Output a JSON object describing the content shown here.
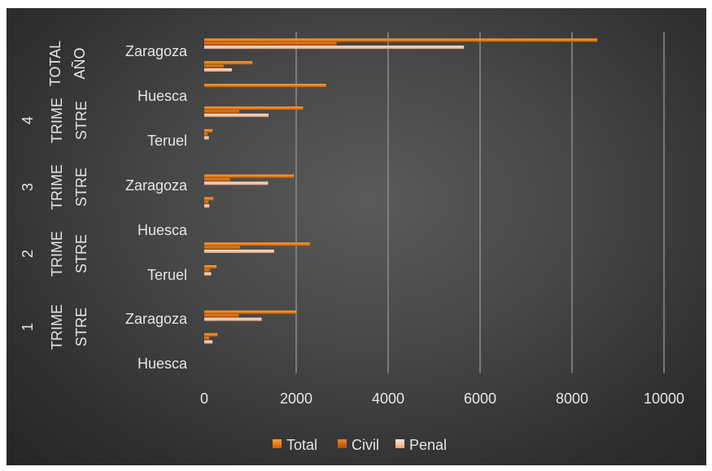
{
  "chart_data": {
    "type": "bar",
    "orientation": "horizontal",
    "title": "",
    "xlabel": "",
    "ylabel": "",
    "xlim": [
      0,
      10000
    ],
    "x_ticks": [
      "0",
      "2000",
      "4000",
      "6000",
      "8000",
      "10000"
    ],
    "grid": "vertical",
    "legend_position": "bottom",
    "category_labels": [
      "Huesca",
      "Zaragoza",
      "Teruel",
      "Huesca",
      "Zaragoza",
      "Teruel",
      "Huesca",
      "Zaragoza"
    ],
    "group_labels": [
      [
        "1",
        "TRIME",
        "STRE"
      ],
      [
        "2",
        "TRIME",
        "STRE"
      ],
      [
        "3",
        "TRIME",
        "STRE"
      ],
      [
        "4",
        "TRIME",
        "STRE"
      ],
      [
        "TOTAL",
        "AÑO"
      ]
    ],
    "rows": [
      {
        "group": "1 TRIMESTRE",
        "province": "Huesca"
      },
      {
        "group": "1 TRIMESTRE",
        "province": "Teruel"
      },
      {
        "group": "1 TRIMESTRE",
        "province": "Zaragoza"
      },
      {
        "group": "2 TRIMESTRE",
        "province": "Huesca"
      },
      {
        "group": "2 TRIMESTRE",
        "province": "Teruel"
      },
      {
        "group": "2 TRIMESTRE",
        "province": "Zaragoza"
      },
      {
        "group": "3 TRIMESTRE",
        "province": "Huesca"
      },
      {
        "group": "3 TRIMESTRE",
        "province": "Teruel"
      },
      {
        "group": "3 TRIMESTRE",
        "province": "Zaragoza"
      },
      {
        "group": "4 TRIMESTRE",
        "province": "Huesca"
      },
      {
        "group": "4 TRIMESTRE",
        "province": "Teruel"
      },
      {
        "group": "4 TRIMESTRE",
        "province": "Zaragoza"
      },
      {
        "group": "TOTAL AÑO",
        "province": "Huesca"
      },
      {
        "group": "TOTAL AÑO",
        "province": "Teruel"
      },
      {
        "group": "TOTAL AÑO",
        "province": "Zaragoza"
      }
    ],
    "series": [
      {
        "name": "Total",
        "color": "#f07f0f",
        "values": [
          0,
          290,
          2000,
          0,
          270,
          2300,
          0,
          200,
          1950,
          0,
          180,
          2150,
          2650,
          1050,
          8550
        ]
      },
      {
        "name": "Civil",
        "color": "#d4680a",
        "values": [
          0,
          110,
          750,
          0,
          120,
          780,
          0,
          90,
          560,
          0,
          70,
          760,
          0,
          420,
          2880
        ]
      },
      {
        "name": "Penal",
        "color": "#f5c9a8",
        "values": [
          0,
          180,
          1250,
          0,
          150,
          1520,
          0,
          110,
          1390,
          0,
          100,
          1400,
          0,
          600,
          5650
        ]
      }
    ]
  }
}
